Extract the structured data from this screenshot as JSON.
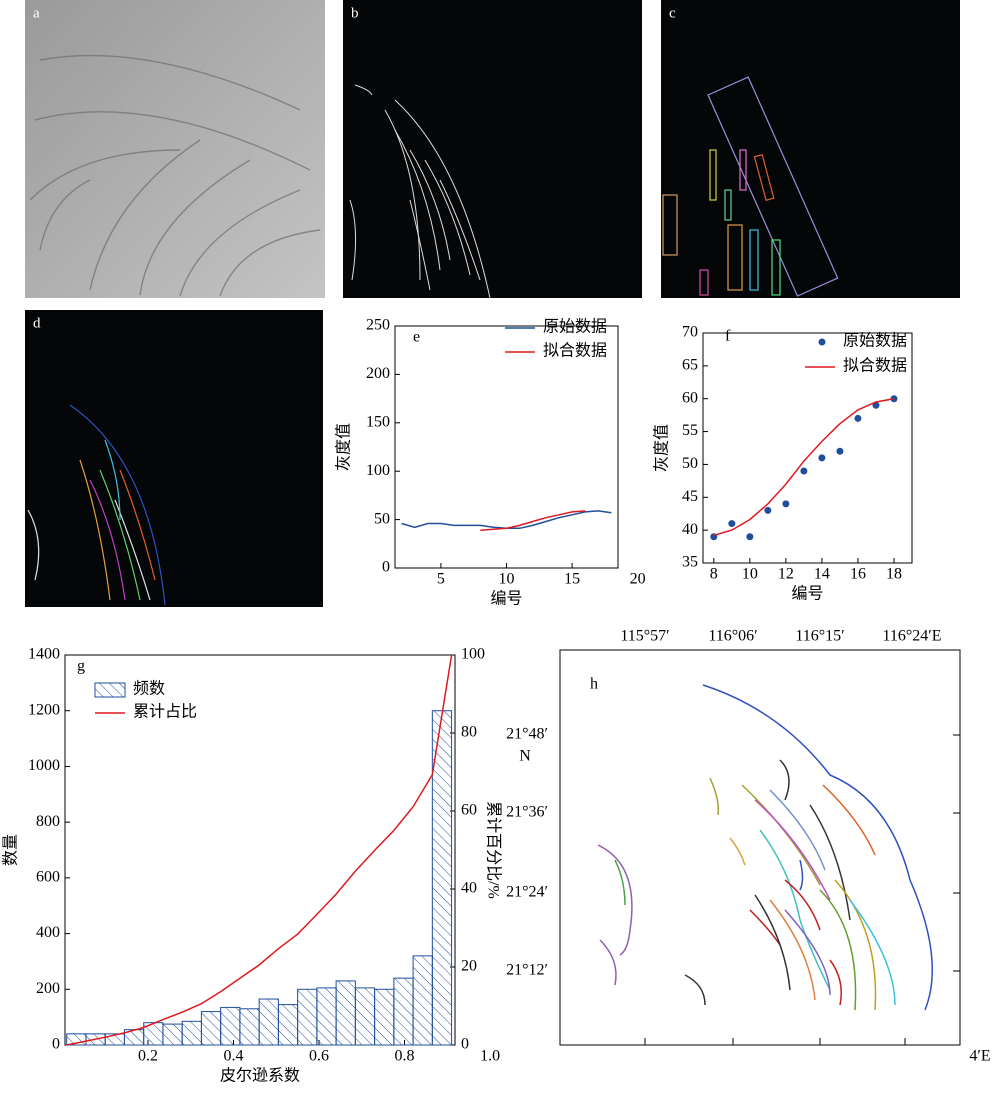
{
  "images": [
    "a",
    "b",
    "c",
    "d"
  ],
  "chart_data": [
    {
      "type": "line",
      "label": "e",
      "xlabel": "编号",
      "ylabel": "灰度值",
      "xlim": [
        1.5,
        18.5
      ],
      "xticks": [
        5,
        10,
        15,
        20
      ],
      "ylim": [
        0,
        250
      ],
      "yticks": [
        0,
        50,
        100,
        150,
        200,
        250
      ],
      "series": [
        {
          "name": "原始数据",
          "color": "#1f4e9c",
          "x": [
            2,
            3,
            4,
            5,
            6,
            7,
            8,
            9,
            10,
            11,
            12,
            13,
            14,
            15,
            16,
            17,
            18
          ],
          "values": [
            46,
            42,
            46,
            46,
            44,
            44,
            44,
            42,
            41,
            41,
            44,
            48,
            52,
            55,
            58,
            59,
            57
          ]
        },
        {
          "name": "拟合数据",
          "color": "#e0191f",
          "x": [
            8,
            9,
            10,
            11,
            12,
            13,
            14,
            15,
            16
          ],
          "values": [
            39,
            40,
            41,
            44,
            48,
            52,
            55,
            58,
            59
          ]
        }
      ]
    },
    {
      "type": "scatter",
      "label": "f",
      "xlabel": "编号",
      "ylabel": "灰度值",
      "xlim": [
        7.4,
        19
      ],
      "xticks": [
        8,
        10,
        12,
        14,
        16,
        18
      ],
      "ylim": [
        35,
        70
      ],
      "yticks": [
        35,
        40,
        45,
        50,
        55,
        60,
        65,
        70
      ],
      "x": [
        8,
        9,
        10,
        11,
        12,
        13,
        14,
        15,
        16,
        17,
        18
      ],
      "series": [
        {
          "name": "原始数据",
          "color": "#1f4e9c",
          "style": "marker",
          "values": [
            39,
            41,
            39,
            43,
            44,
            49,
            51,
            52,
            57,
            59,
            60
          ]
        },
        {
          "name": "拟合数据",
          "color": "#e0191f",
          "style": "line",
          "values": [
            39.2,
            40,
            41.6,
            44,
            47,
            50.5,
            53.5,
            56.2,
            58.3,
            59.5,
            60
          ]
        }
      ]
    },
    {
      "type": "histogram",
      "label": "g",
      "xlabel": "皮尔逊系数",
      "ylabel": "数量",
      "y2label": "累计百分比/%",
      "xlim": [
        0.006,
        0.918
      ],
      "xticks": [
        0.2,
        0.4,
        0.6,
        0.8,
        {
          "value": 1,
          "label": "1.0"
        }
      ],
      "ylim": [
        0,
        1400
      ],
      "yticks": [
        0,
        200,
        400,
        600,
        800,
        1000,
        1200,
        1400
      ],
      "y2lim": [
        0,
        100
      ],
      "y2ticks": [
        0,
        20,
        40,
        60,
        80,
        100
      ],
      "bins": [
        0.01,
        0.055,
        0.1,
        0.145,
        0.19,
        0.235,
        0.28,
        0.325,
        0.37,
        0.415,
        0.46,
        0.505,
        0.55,
        0.595,
        0.64,
        0.685,
        0.73,
        0.775,
        0.82,
        0.865,
        0.91
      ],
      "series": [
        {
          "name": "频数",
          "color": "#1f4e9c",
          "values": [
            40,
            40,
            40,
            55,
            80,
            75,
            85,
            120,
            135,
            130,
            165,
            145,
            200,
            205,
            230,
            205,
            200,
            240,
            320,
            1200
          ]
        },
        {
          "name": "累计占比",
          "color": "#e0191f",
          "axis": "y2",
          "x": [
            0.01,
            0.055,
            0.1,
            0.145,
            0.19,
            0.235,
            0.28,
            0.325,
            0.37,
            0.415,
            0.46,
            0.505,
            0.55,
            0.595,
            0.64,
            0.685,
            0.73,
            0.775,
            0.82,
            0.865,
            0.91
          ],
          "values": [
            0,
            1,
            2,
            3.1,
            4.5,
            6.5,
            8.4,
            10.6,
            13.7,
            17.1,
            20.5,
            24.7,
            28.4,
            33.5,
            38.7,
            44.6,
            49.9,
            55,
            61.1,
            69.3,
            100
          ]
        }
      ]
    }
  ],
  "map": {
    "label": "h",
    "top": [
      "115°57′",
      "116°06′",
      "116°15′",
      "116°24′E"
    ],
    "left": [
      "21°48′",
      "N",
      "21°36′",
      "21°24′",
      "21°12′"
    ],
    "corner": "4′E"
  }
}
